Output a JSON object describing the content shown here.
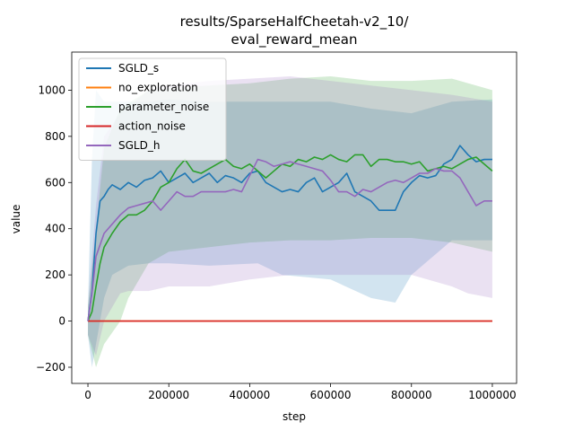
{
  "chart_data": {
    "type": "line",
    "title_line1": "results/SparseHalfCheetah-v2_10/",
    "title_line2": "eval_reward_mean",
    "xlabel": "step",
    "ylabel": "value",
    "xlim": [
      -40000,
      1060000
    ],
    "ylim": [
      -270,
      1165
    ],
    "xticks": [
      0,
      200000,
      400000,
      600000,
      800000,
      1000000
    ],
    "xtick_labels": [
      "0",
      "200000",
      "400000",
      "600000",
      "800000",
      "1000000"
    ],
    "yticks": [
      -200,
      0,
      200,
      400,
      600,
      800,
      1000
    ],
    "ytick_labels": [
      "−200",
      "0",
      "200",
      "400",
      "600",
      "800",
      "1000"
    ],
    "grid": false,
    "legend_position": "top-left",
    "series": [
      {
        "name": "SGLD_s",
        "color": "#1f77b4",
        "points": [
          [
            0,
            0
          ],
          [
            10000,
            130
          ],
          [
            20000,
            380
          ],
          [
            30000,
            520
          ],
          [
            40000,
            540
          ],
          [
            50000,
            570
          ],
          [
            60000,
            590
          ],
          [
            80000,
            570
          ],
          [
            100000,
            600
          ],
          [
            120000,
            580
          ],
          [
            140000,
            610
          ],
          [
            160000,
            620
          ],
          [
            180000,
            650
          ],
          [
            200000,
            600
          ],
          [
            220000,
            620
          ],
          [
            240000,
            640
          ],
          [
            260000,
            600
          ],
          [
            280000,
            620
          ],
          [
            300000,
            640
          ],
          [
            320000,
            600
          ],
          [
            340000,
            630
          ],
          [
            360000,
            620
          ],
          [
            380000,
            600
          ],
          [
            400000,
            640
          ],
          [
            420000,
            650
          ],
          [
            440000,
            600
          ],
          [
            460000,
            580
          ],
          [
            480000,
            560
          ],
          [
            500000,
            570
          ],
          [
            520000,
            560
          ],
          [
            540000,
            600
          ],
          [
            560000,
            620
          ],
          [
            580000,
            560
          ],
          [
            600000,
            580
          ],
          [
            620000,
            600
          ],
          [
            640000,
            640
          ],
          [
            660000,
            560
          ],
          [
            680000,
            540
          ],
          [
            700000,
            520
          ],
          [
            720000,
            480
          ],
          [
            740000,
            480
          ],
          [
            760000,
            480
          ],
          [
            780000,
            560
          ],
          [
            800000,
            600
          ],
          [
            820000,
            630
          ],
          [
            840000,
            620
          ],
          [
            860000,
            630
          ],
          [
            880000,
            680
          ],
          [
            900000,
            700
          ],
          [
            920000,
            760
          ],
          [
            940000,
            720
          ],
          [
            960000,
            690
          ],
          [
            980000,
            700
          ],
          [
            1000000,
            700
          ]
        ],
        "band_upper": [
          [
            0,
            60
          ],
          [
            10000,
            700
          ],
          [
            20000,
            1000
          ],
          [
            40000,
            950
          ],
          [
            60000,
            950
          ],
          [
            100000,
            950
          ],
          [
            150000,
            950
          ],
          [
            200000,
            960
          ],
          [
            300000,
            950
          ],
          [
            420000,
            950
          ],
          [
            600000,
            950
          ],
          [
            700000,
            920
          ],
          [
            800000,
            900
          ],
          [
            900000,
            950
          ],
          [
            1000000,
            960
          ]
        ],
        "band_lower": [
          [
            0,
            -60
          ],
          [
            10000,
            -200
          ],
          [
            20000,
            -100
          ],
          [
            40000,
            100
          ],
          [
            60000,
            200
          ],
          [
            100000,
            240
          ],
          [
            150000,
            250
          ],
          [
            200000,
            250
          ],
          [
            300000,
            240
          ],
          [
            420000,
            250
          ],
          [
            480000,
            200
          ],
          [
            600000,
            180
          ],
          [
            700000,
            100
          ],
          [
            760000,
            80
          ],
          [
            800000,
            200
          ],
          [
            900000,
            350
          ],
          [
            1000000,
            350
          ]
        ]
      },
      {
        "name": "no_exploration",
        "color": "#ff7f0e",
        "points": [
          [
            0,
            0
          ],
          [
            1000000,
            0
          ]
        ],
        "band_upper": [
          [
            0,
            0
          ],
          [
            1000000,
            0
          ]
        ],
        "band_lower": [
          [
            0,
            0
          ],
          [
            1000000,
            0
          ]
        ]
      },
      {
        "name": "parameter_noise",
        "color": "#2ca02c",
        "points": [
          [
            0,
            0
          ],
          [
            10000,
            40
          ],
          [
            20000,
            150
          ],
          [
            30000,
            250
          ],
          [
            40000,
            320
          ],
          [
            60000,
            380
          ],
          [
            80000,
            430
          ],
          [
            100000,
            460
          ],
          [
            120000,
            460
          ],
          [
            140000,
            480
          ],
          [
            160000,
            520
          ],
          [
            180000,
            580
          ],
          [
            200000,
            600
          ],
          [
            220000,
            660
          ],
          [
            240000,
            700
          ],
          [
            260000,
            650
          ],
          [
            280000,
            640
          ],
          [
            300000,
            660
          ],
          [
            320000,
            680
          ],
          [
            340000,
            700
          ],
          [
            360000,
            670
          ],
          [
            380000,
            660
          ],
          [
            400000,
            680
          ],
          [
            420000,
            650
          ],
          [
            440000,
            620
          ],
          [
            460000,
            650
          ],
          [
            480000,
            680
          ],
          [
            500000,
            670
          ],
          [
            520000,
            700
          ],
          [
            540000,
            690
          ],
          [
            560000,
            710
          ],
          [
            580000,
            700
          ],
          [
            600000,
            720
          ],
          [
            620000,
            700
          ],
          [
            640000,
            690
          ],
          [
            660000,
            720
          ],
          [
            680000,
            720
          ],
          [
            700000,
            670
          ],
          [
            720000,
            700
          ],
          [
            740000,
            700
          ],
          [
            760000,
            690
          ],
          [
            780000,
            690
          ],
          [
            800000,
            680
          ],
          [
            820000,
            690
          ],
          [
            840000,
            650
          ],
          [
            860000,
            660
          ],
          [
            880000,
            670
          ],
          [
            900000,
            660
          ],
          [
            920000,
            680
          ],
          [
            940000,
            700
          ],
          [
            960000,
            710
          ],
          [
            980000,
            680
          ],
          [
            1000000,
            650
          ]
        ],
        "band_upper": [
          [
            0,
            60
          ],
          [
            20000,
            400
          ],
          [
            40000,
            750
          ],
          [
            80000,
            920
          ],
          [
            150000,
            1000
          ],
          [
            200000,
            1010
          ],
          [
            300000,
            1020
          ],
          [
            400000,
            1030
          ],
          [
            500000,
            1050
          ],
          [
            600000,
            1060
          ],
          [
            700000,
            1040
          ],
          [
            800000,
            1040
          ],
          [
            900000,
            1050
          ],
          [
            1000000,
            1000
          ]
        ],
        "band_lower": [
          [
            0,
            -60
          ],
          [
            20000,
            -200
          ],
          [
            40000,
            -100
          ],
          [
            80000,
            0
          ],
          [
            100000,
            100
          ],
          [
            150000,
            250
          ],
          [
            200000,
            300
          ],
          [
            300000,
            320
          ],
          [
            400000,
            340
          ],
          [
            500000,
            350
          ],
          [
            600000,
            350
          ],
          [
            700000,
            360
          ],
          [
            800000,
            360
          ],
          [
            900000,
            340
          ],
          [
            1000000,
            300
          ]
        ]
      },
      {
        "name": "action_noise",
        "color": "#d62728",
        "points": [
          [
            0,
            0
          ],
          [
            1000000,
            0
          ]
        ],
        "band_upper": [
          [
            0,
            0
          ],
          [
            1000000,
            0
          ]
        ],
        "band_lower": [
          [
            0,
            0
          ],
          [
            1000000,
            0
          ]
        ]
      },
      {
        "name": "SGLD_h",
        "color": "#9467bd",
        "points": [
          [
            0,
            0
          ],
          [
            10000,
            120
          ],
          [
            20000,
            280
          ],
          [
            40000,
            380
          ],
          [
            60000,
            420
          ],
          [
            80000,
            460
          ],
          [
            100000,
            490
          ],
          [
            120000,
            500
          ],
          [
            140000,
            510
          ],
          [
            160000,
            520
          ],
          [
            180000,
            480
          ],
          [
            200000,
            520
          ],
          [
            220000,
            560
          ],
          [
            240000,
            540
          ],
          [
            260000,
            540
          ],
          [
            280000,
            560
          ],
          [
            300000,
            560
          ],
          [
            320000,
            560
          ],
          [
            340000,
            560
          ],
          [
            360000,
            570
          ],
          [
            380000,
            560
          ],
          [
            400000,
            630
          ],
          [
            420000,
            700
          ],
          [
            440000,
            690
          ],
          [
            460000,
            670
          ],
          [
            480000,
            680
          ],
          [
            500000,
            690
          ],
          [
            520000,
            680
          ],
          [
            540000,
            670
          ],
          [
            560000,
            660
          ],
          [
            580000,
            650
          ],
          [
            600000,
            610
          ],
          [
            620000,
            560
          ],
          [
            640000,
            560
          ],
          [
            660000,
            540
          ],
          [
            680000,
            570
          ],
          [
            700000,
            560
          ],
          [
            720000,
            580
          ],
          [
            740000,
            600
          ],
          [
            760000,
            610
          ],
          [
            780000,
            600
          ],
          [
            800000,
            620
          ],
          [
            820000,
            640
          ],
          [
            840000,
            640
          ],
          [
            860000,
            660
          ],
          [
            880000,
            650
          ],
          [
            900000,
            650
          ],
          [
            920000,
            620
          ],
          [
            940000,
            560
          ],
          [
            960000,
            500
          ],
          [
            980000,
            520
          ],
          [
            1000000,
            520
          ]
        ],
        "band_upper": [
          [
            0,
            60
          ],
          [
            20000,
            500
          ],
          [
            40000,
            800
          ],
          [
            80000,
            900
          ],
          [
            150000,
            1000
          ],
          [
            200000,
            1020
          ],
          [
            300000,
            1040
          ],
          [
            400000,
            1050
          ],
          [
            500000,
            1060
          ],
          [
            600000,
            1040
          ],
          [
            700000,
            1020
          ],
          [
            800000,
            1000
          ],
          [
            900000,
            980
          ],
          [
            1000000,
            950
          ]
        ],
        "band_lower": [
          [
            0,
            -60
          ],
          [
            20000,
            -150
          ],
          [
            40000,
            0
          ],
          [
            80000,
            120
          ],
          [
            100000,
            130
          ],
          [
            150000,
            130
          ],
          [
            200000,
            150
          ],
          [
            300000,
            150
          ],
          [
            400000,
            180
          ],
          [
            500000,
            200
          ],
          [
            600000,
            200
          ],
          [
            700000,
            200
          ],
          [
            800000,
            200
          ],
          [
            900000,
            150
          ],
          [
            940000,
            120
          ],
          [
            1000000,
            100
          ]
        ]
      }
    ]
  }
}
